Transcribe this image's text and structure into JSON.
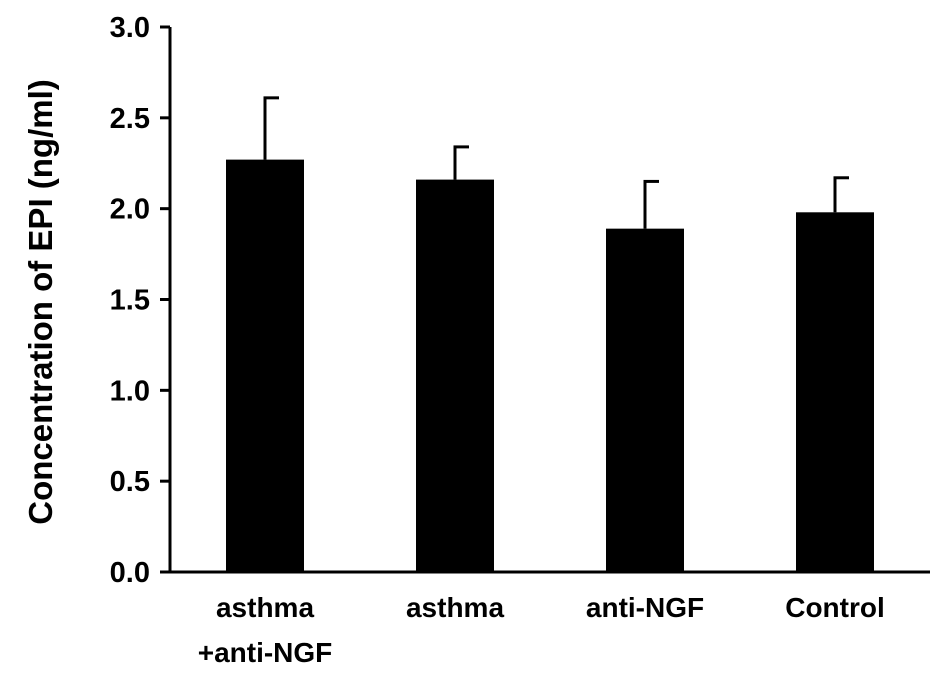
{
  "chart_data": {
    "type": "bar",
    "categories": [
      "asthma\n+anti-NGF",
      "asthma",
      "anti-NGF",
      "Control"
    ],
    "values": [
      2.27,
      2.16,
      1.89,
      1.98
    ],
    "errors": [
      0.34,
      0.18,
      0.26,
      0.19
    ],
    "title": "",
    "xlabel": "",
    "ylabel": "Concentration of EPI (ng/ml)",
    "ylim": [
      0,
      3.0
    ],
    "yticks": [
      "0.0",
      "0.5",
      "1.0",
      "1.5",
      "2.0",
      "2.5",
      "3.0"
    ],
    "grid": false,
    "bar_color": "#000000"
  }
}
